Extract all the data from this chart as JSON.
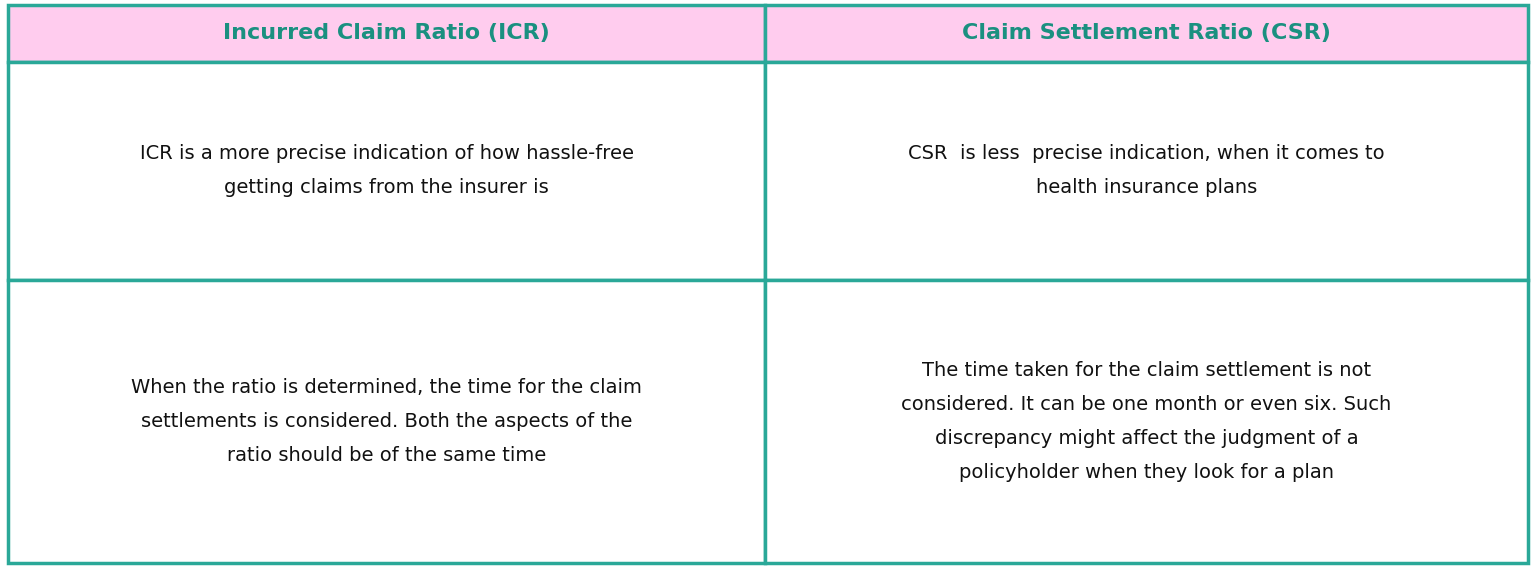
{
  "header_left": "Incurred Claim Ratio (ICR)",
  "header_right": "Claim Settlement Ratio (CSR)",
  "cell_top_left": "ICR is a more precise indication of how hassle-free\ngetting claims from the insurer is",
  "cell_top_right": "CSR  is less  precise indication, when it comes to\nhealth insurance plans",
  "cell_bottom_left": "When the ratio is determined, the time for the claim\nsettlements is considered. Both the aspects of the\nratio should be of the same time",
  "cell_bottom_right": "The time taken for the claim settlement is not\nconsidered. It can be one month or even six. Such\ndiscrepancy might affect the judgment of a\npolicyholder when they look for a plan",
  "header_bg_color": "#FFCCEE",
  "header_text_color": "#1A9080",
  "cell_bg_color": "#FFFFFF",
  "cell_text_color": "#111111",
  "border_color": "#2AA898",
  "header_fontsize": 16,
  "cell_fontsize": 14,
  "fig_width": 15.36,
  "fig_height": 5.69,
  "dpi": 100
}
